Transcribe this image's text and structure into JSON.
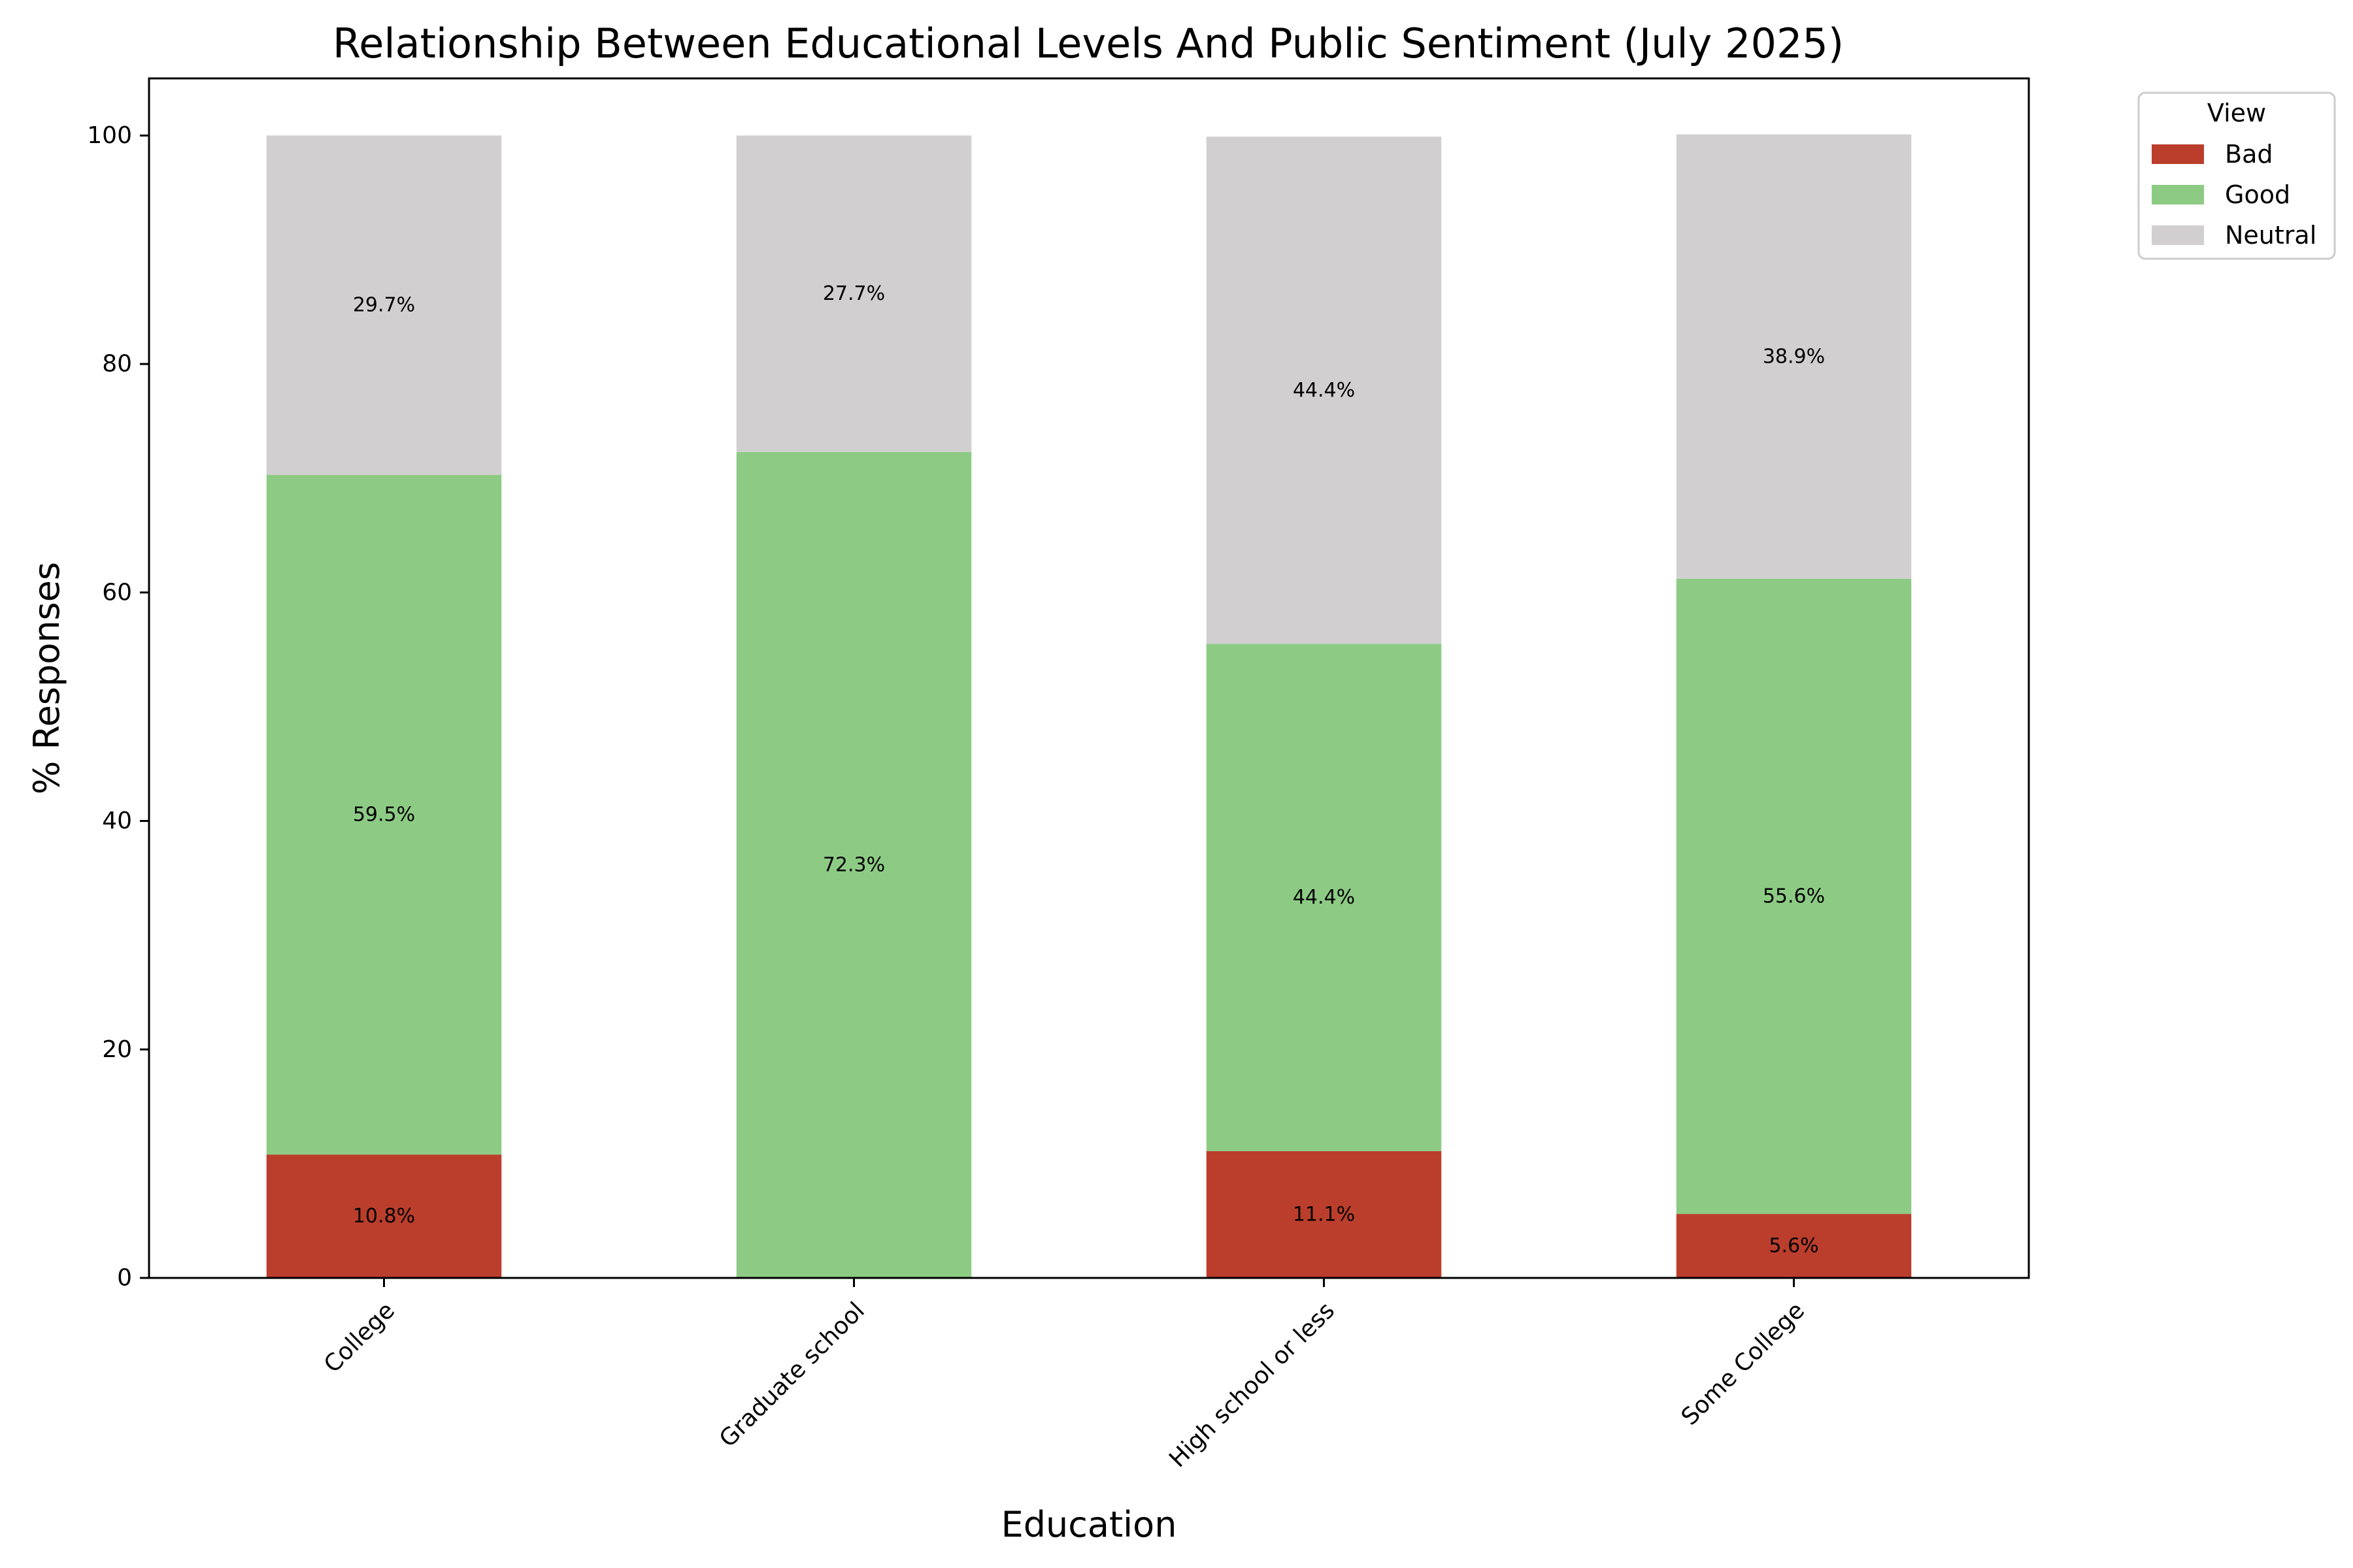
{
  "chart_data": {
    "type": "bar",
    "stacked": true,
    "title": "Relationship Between Educational Levels And Public Sentiment (July 2025)",
    "xlabel": "Education",
    "ylabel": "% Responses",
    "categories": [
      "College",
      "Graduate school",
      "High school or less",
      "Some College"
    ],
    "series": [
      {
        "name": "Bad",
        "color": "#bb3e2d",
        "values": [
          10.8,
          0,
          11.1,
          5.6
        ],
        "labels": [
          "10.8%",
          "",
          "11.1%",
          "5.6%"
        ]
      },
      {
        "name": "Good",
        "color": "#8dcb85",
        "values": [
          59.5,
          72.3,
          44.4,
          55.6
        ],
        "labels": [
          "59.5%",
          "72.3%",
          "44.4%",
          "55.6%"
        ]
      },
      {
        "name": "Neutral",
        "color": "#d1cfd0",
        "values": [
          29.7,
          27.7,
          44.4,
          38.9
        ],
        "labels": [
          "29.7%",
          "27.7%",
          "44.4%",
          "38.9%"
        ]
      }
    ],
    "ylim": [
      0,
      105
    ],
    "yticks": [
      0,
      20,
      40,
      60,
      80,
      100
    ],
    "grid": false,
    "legend": {
      "title": "View",
      "placement": "outside-top-right"
    }
  }
}
